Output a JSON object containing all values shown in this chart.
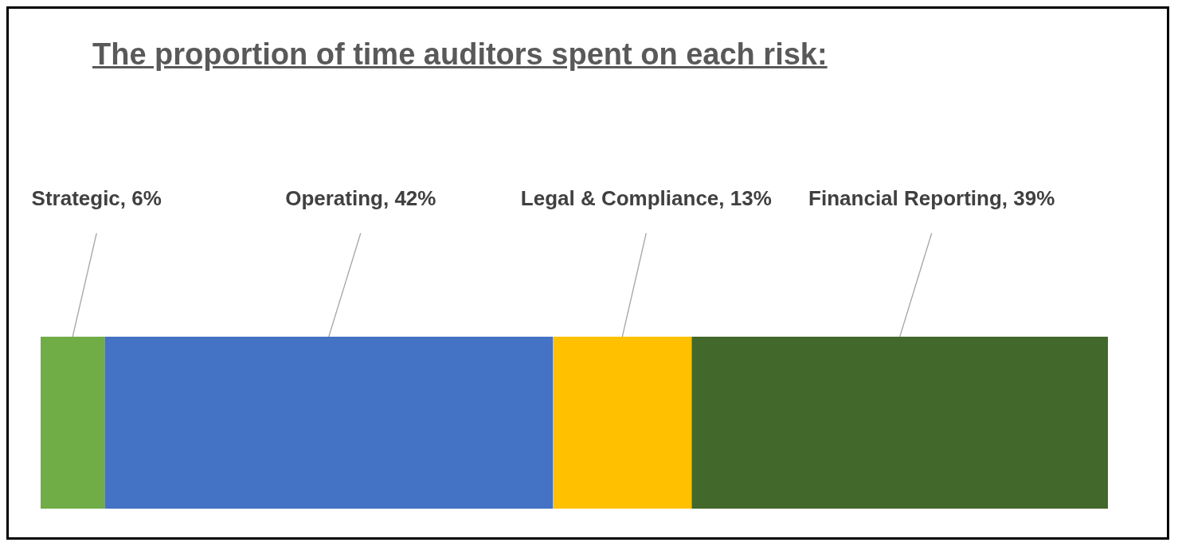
{
  "chart_data": {
    "type": "bar",
    "title": "The proportion of time auditors spent on each risk:",
    "orientation": "horizontal",
    "stacked": true,
    "categories": [
      null
    ],
    "series": [
      {
        "color": "#70ad47",
        "values": [
          6
        ],
        "value_labels": [
          "Strategic, 6%"
        ]
      },
      {
        "color": "#4472c4",
        "values": [
          42
        ],
        "value_labels": [
          "Operating, 42%"
        ]
      },
      {
        "color": "#ffc000",
        "values": [
          13
        ],
        "value_labels": [
          "Legal & Compliance, 13%"
        ]
      },
      {
        "color": "#43682b",
        "values": [
          39
        ],
        "value_labels": [
          "Financial Reporting, 39%"
        ]
      }
    ],
    "legend": false,
    "grid": false
  }
}
